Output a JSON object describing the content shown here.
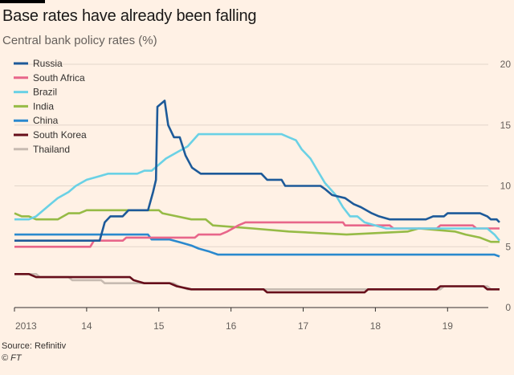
{
  "header": {
    "title": "Base rates have already been falling",
    "subtitle": "Central bank policy rates (%)"
  },
  "footer": {
    "source": "Source: Refinitiv",
    "copyright": "© FT"
  },
  "colors": {
    "background": "#fff1e5",
    "grid": "#e3d6cb",
    "axis": "#33302e",
    "tick_text": "#66605c"
  },
  "chart_data": {
    "type": "line",
    "title": "Base rates have already been falling",
    "subtitle": "Central bank policy rates (%)",
    "xlabel": "",
    "ylabel": "",
    "xlim": [
      2013.0,
      2019.72
    ],
    "ylim": [
      0,
      20
    ],
    "x_ticks": [
      2013,
      2014,
      2015,
      2016,
      2017,
      2018,
      2019
    ],
    "x_tick_labels": [
      "2013",
      "14",
      "15",
      "16",
      "17",
      "18",
      "19"
    ],
    "y_ticks": [
      0,
      5,
      10,
      15,
      20
    ],
    "y_tick_labels": [
      "0",
      "5",
      "10",
      "15",
      "20"
    ],
    "grid": true,
    "y_axis_side": "right",
    "legend_position": "top-left",
    "series": [
      {
        "name": "Russia",
        "color": "#1d5a99",
        "points": [
          [
            2013.0,
            5.5
          ],
          [
            2014.18,
            5.5
          ],
          [
            2014.25,
            7.0
          ],
          [
            2014.33,
            7.5
          ],
          [
            2014.5,
            7.5
          ],
          [
            2014.58,
            8.0
          ],
          [
            2014.85,
            8.0
          ],
          [
            2014.92,
            9.5
          ],
          [
            2014.96,
            10.5
          ],
          [
            2014.98,
            16.5
          ],
          [
            2015.08,
            17.0
          ],
          [
            2015.13,
            15.0
          ],
          [
            2015.21,
            14.0
          ],
          [
            2015.29,
            14.0
          ],
          [
            2015.37,
            12.5
          ],
          [
            2015.46,
            11.5
          ],
          [
            2015.58,
            11.0
          ],
          [
            2015.98,
            11.0
          ],
          [
            2016.42,
            11.0
          ],
          [
            2016.5,
            10.5
          ],
          [
            2016.7,
            10.5
          ],
          [
            2016.75,
            10.0
          ],
          [
            2017.1,
            10.0
          ],
          [
            2017.24,
            10.0
          ],
          [
            2017.3,
            9.75
          ],
          [
            2017.4,
            9.25
          ],
          [
            2017.58,
            9.0
          ],
          [
            2017.7,
            8.5
          ],
          [
            2017.8,
            8.25
          ],
          [
            2017.95,
            7.75
          ],
          [
            2018.05,
            7.5
          ],
          [
            2018.2,
            7.25
          ],
          [
            2018.7,
            7.25
          ],
          [
            2018.8,
            7.5
          ],
          [
            2018.95,
            7.5
          ],
          [
            2019.0,
            7.75
          ],
          [
            2019.45,
            7.75
          ],
          [
            2019.55,
            7.5
          ],
          [
            2019.6,
            7.25
          ],
          [
            2019.68,
            7.25
          ],
          [
            2019.72,
            7.0
          ]
        ]
      },
      {
        "name": "South Africa",
        "color": "#e8668a",
        "points": [
          [
            2013.0,
            5.0
          ],
          [
            2014.05,
            5.0
          ],
          [
            2014.1,
            5.5
          ],
          [
            2014.5,
            5.5
          ],
          [
            2014.55,
            5.75
          ],
          [
            2014.95,
            5.75
          ],
          [
            2015.05,
            5.75
          ],
          [
            2015.5,
            5.75
          ],
          [
            2015.55,
            6.0
          ],
          [
            2015.85,
            6.0
          ],
          [
            2015.95,
            6.25
          ],
          [
            2016.1,
            6.75
          ],
          [
            2016.2,
            7.0
          ],
          [
            2016.8,
            7.0
          ],
          [
            2017.55,
            7.0
          ],
          [
            2017.58,
            6.75
          ],
          [
            2018.2,
            6.75
          ],
          [
            2018.25,
            6.5
          ],
          [
            2018.85,
            6.5
          ],
          [
            2018.9,
            6.75
          ],
          [
            2019.35,
            6.75
          ],
          [
            2019.4,
            6.5
          ],
          [
            2019.72,
            6.5
          ]
        ]
      },
      {
        "name": "Brazil",
        "color": "#6ad1e5",
        "points": [
          [
            2013.0,
            7.25
          ],
          [
            2013.2,
            7.25
          ],
          [
            2013.3,
            7.5
          ],
          [
            2013.4,
            8.0
          ],
          [
            2013.5,
            8.5
          ],
          [
            2013.6,
            9.0
          ],
          [
            2013.75,
            9.5
          ],
          [
            2013.85,
            10.0
          ],
          [
            2014.0,
            10.5
          ],
          [
            2014.15,
            10.75
          ],
          [
            2014.3,
            11.0
          ],
          [
            2014.7,
            11.0
          ],
          [
            2014.8,
            11.25
          ],
          [
            2014.9,
            11.25
          ],
          [
            2015.0,
            11.75
          ],
          [
            2015.1,
            12.25
          ],
          [
            2015.25,
            12.75
          ],
          [
            2015.4,
            13.25
          ],
          [
            2015.55,
            14.25
          ],
          [
            2016.7,
            14.25
          ],
          [
            2016.8,
            14.0
          ],
          [
            2016.9,
            13.75
          ],
          [
            2016.98,
            13.0
          ],
          [
            2017.1,
            12.25
          ],
          [
            2017.2,
            11.25
          ],
          [
            2017.3,
            10.25
          ],
          [
            2017.45,
            9.25
          ],
          [
            2017.55,
            8.25
          ],
          [
            2017.65,
            7.5
          ],
          [
            2017.75,
            7.5
          ],
          [
            2017.85,
            7.0
          ],
          [
            2018.0,
            6.75
          ],
          [
            2018.15,
            6.5
          ],
          [
            2019.55,
            6.5
          ],
          [
            2019.65,
            6.0
          ],
          [
            2019.72,
            5.5
          ]
        ]
      },
      {
        "name": "India",
        "color": "#96bb46",
        "points": [
          [
            2013.0,
            7.75
          ],
          [
            2013.1,
            7.5
          ],
          [
            2013.2,
            7.5
          ],
          [
            2013.3,
            7.25
          ],
          [
            2013.6,
            7.25
          ],
          [
            2013.75,
            7.75
          ],
          [
            2013.9,
            7.75
          ],
          [
            2014.0,
            8.0
          ],
          [
            2015.0,
            8.0
          ],
          [
            2015.05,
            7.75
          ],
          [
            2015.25,
            7.5
          ],
          [
            2015.45,
            7.25
          ],
          [
            2015.65,
            7.25
          ],
          [
            2015.75,
            6.75
          ],
          [
            2016.3,
            6.5
          ],
          [
            2016.8,
            6.25
          ],
          [
            2017.6,
            6.0
          ],
          [
            2018.45,
            6.25
          ],
          [
            2018.6,
            6.5
          ],
          [
            2019.1,
            6.25
          ],
          [
            2019.25,
            6.0
          ],
          [
            2019.45,
            5.75
          ],
          [
            2019.6,
            5.4
          ],
          [
            2019.72,
            5.4
          ]
        ]
      },
      {
        "name": "China",
        "color": "#2a89ce",
        "points": [
          [
            2013.0,
            6.0
          ],
          [
            2014.85,
            6.0
          ],
          [
            2014.9,
            5.6
          ],
          [
            2015.15,
            5.6
          ],
          [
            2015.3,
            5.35
          ],
          [
            2015.45,
            5.1
          ],
          [
            2015.55,
            4.85
          ],
          [
            2015.7,
            4.6
          ],
          [
            2015.82,
            4.35
          ],
          [
            2019.65,
            4.35
          ],
          [
            2019.72,
            4.2
          ]
        ]
      },
      {
        "name": "South Korea",
        "color": "#660e1a",
        "points": [
          [
            2013.0,
            2.75
          ],
          [
            2013.2,
            2.75
          ],
          [
            2013.3,
            2.5
          ],
          [
            2014.6,
            2.5
          ],
          [
            2014.65,
            2.25
          ],
          [
            2014.8,
            2.0
          ],
          [
            2015.15,
            2.0
          ],
          [
            2015.25,
            1.75
          ],
          [
            2015.45,
            1.5
          ],
          [
            2016.45,
            1.5
          ],
          [
            2016.5,
            1.25
          ],
          [
            2017.85,
            1.25
          ],
          [
            2017.9,
            1.5
          ],
          [
            2018.85,
            1.5
          ],
          [
            2018.9,
            1.75
          ],
          [
            2019.5,
            1.75
          ],
          [
            2019.55,
            1.5
          ],
          [
            2019.72,
            1.5
          ]
        ]
      },
      {
        "name": "Thailand",
        "color": "#c7bbb1",
        "points": [
          [
            2013.0,
            2.75
          ],
          [
            2013.3,
            2.75
          ],
          [
            2013.35,
            2.5
          ],
          [
            2013.75,
            2.5
          ],
          [
            2013.8,
            2.25
          ],
          [
            2014.2,
            2.25
          ],
          [
            2014.25,
            2.0
          ],
          [
            2015.2,
            2.0
          ],
          [
            2015.28,
            1.75
          ],
          [
            2015.4,
            1.5
          ],
          [
            2018.9,
            1.5
          ],
          [
            2018.95,
            1.75
          ],
          [
            2019.55,
            1.75
          ],
          [
            2019.6,
            1.5
          ],
          [
            2019.72,
            1.5
          ]
        ]
      }
    ]
  }
}
